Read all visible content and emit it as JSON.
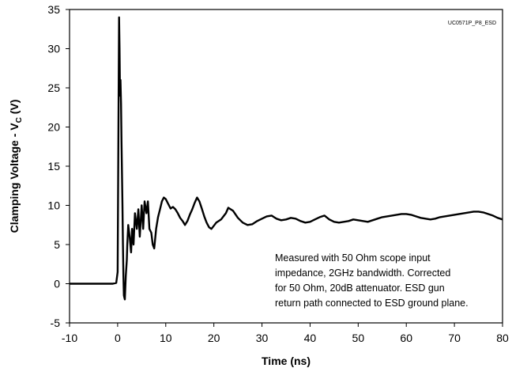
{
  "chart_data": {
    "type": "line",
    "figure_id": "UC0571P_P8_ESD",
    "xlabel": "Time (ns)",
    "ylabel_main": "Clamping Voltage - V",
    "ylabel_sub": "C",
    "ylabel_unit": " (V)",
    "xlim": [
      -10,
      80
    ],
    "ylim": [
      -5,
      35
    ],
    "xticks": [
      -10,
      0,
      10,
      20,
      30,
      40,
      50,
      60,
      70,
      80
    ],
    "yticks": [
      -5,
      0,
      5,
      10,
      15,
      20,
      25,
      30,
      35
    ],
    "grid": false,
    "annotation": [
      "Measured with 50 Ohm scope input",
      "impedance, 2GHz bandwidth. Corrected",
      "for 50 Ohm, 20dB attenuator. ESD gun",
      "return path connected to ESD ground plane."
    ],
    "series": [
      {
        "color": "#000000",
        "x": [
          -10,
          -5,
          -1,
          -0.3,
          0,
          0.15,
          0.3,
          0.4,
          0.5,
          0.6,
          0.7,
          0.8,
          0.9,
          1.0,
          1.1,
          1.2,
          1.3,
          1.5,
          1.7,
          1.9,
          2.0,
          2.2,
          2.5,
          2.8,
          3.0,
          3.3,
          3.6,
          4.0,
          4.3,
          4.6,
          5.0,
          5.3,
          5.6,
          6.0,
          6.3,
          6.6,
          7.0,
          7.3,
          7.6,
          8.0,
          8.4,
          8.8,
          9.2,
          9.6,
          10.0,
          10.5,
          11.0,
          11.5,
          12.0,
          12.5,
          13.0,
          13.5,
          14.0,
          14.5,
          15.0,
          15.5,
          16.0,
          16.5,
          17.0,
          17.5,
          18.0,
          18.5,
          19.0,
          19.5,
          20.0,
          20.5,
          21.0,
          21.5,
          22.0,
          22.5,
          23.0,
          24.0,
          25.0,
          26.0,
          27.0,
          28.0,
          29.0,
          30.0,
          31.0,
          32.0,
          33.0,
          34.0,
          35.0,
          36.0,
          37.0,
          38.0,
          39.0,
          40.0,
          41.0,
          42.0,
          43.0,
          44.0,
          45.0,
          46.0,
          47.0,
          48.0,
          49.0,
          50.0,
          51.0,
          52.0,
          53.0,
          54.0,
          55.0,
          56.0,
          57.0,
          58.0,
          59.0,
          60.0,
          61.0,
          62.0,
          63.0,
          64.0,
          65.0,
          66.0,
          67.0,
          68.0,
          69.0,
          70.0,
          71.0,
          72.0,
          73.0,
          74.0,
          75.0,
          76.0,
          77.0,
          78.0,
          79.0,
          80.0
        ],
        "y": [
          0,
          0,
          0,
          0.1,
          1.5,
          18,
          34,
          30,
          24,
          26,
          23,
          18,
          14,
          10,
          5,
          1,
          -1.5,
          -2,
          1,
          3,
          5,
          7.5,
          6,
          4,
          7,
          5,
          9,
          7,
          9.5,
          6,
          10,
          7,
          10.5,
          9,
          10.5,
          7,
          6.5,
          5,
          4.5,
          7,
          8.5,
          9.5,
          10.5,
          11,
          10.8,
          10.2,
          9.6,
          9.8,
          9.5,
          9.0,
          8.4,
          8.0,
          7.5,
          8.0,
          8.8,
          9.5,
          10.3,
          11.0,
          10.5,
          9.6,
          8.6,
          7.8,
          7.2,
          7.0,
          7.4,
          7.8,
          8.0,
          8.2,
          8.6,
          9.0,
          9.7,
          9.3,
          8.4,
          7.8,
          7.5,
          7.6,
          8.0,
          8.3,
          8.6,
          8.7,
          8.3,
          8.1,
          8.2,
          8.4,
          8.3,
          8.0,
          7.8,
          7.9,
          8.2,
          8.5,
          8.7,
          8.2,
          7.9,
          7.8,
          7.9,
          8.0,
          8.2,
          8.1,
          8.0,
          7.9,
          8.1,
          8.3,
          8.5,
          8.6,
          8.7,
          8.8,
          8.9,
          8.9,
          8.8,
          8.6,
          8.4,
          8.3,
          8.2,
          8.3,
          8.5,
          8.6,
          8.7,
          8.8,
          8.9,
          9.0,
          9.1,
          9.2,
          9.2,
          9.1,
          8.9,
          8.7,
          8.4,
          8.2
        ]
      }
    ]
  }
}
